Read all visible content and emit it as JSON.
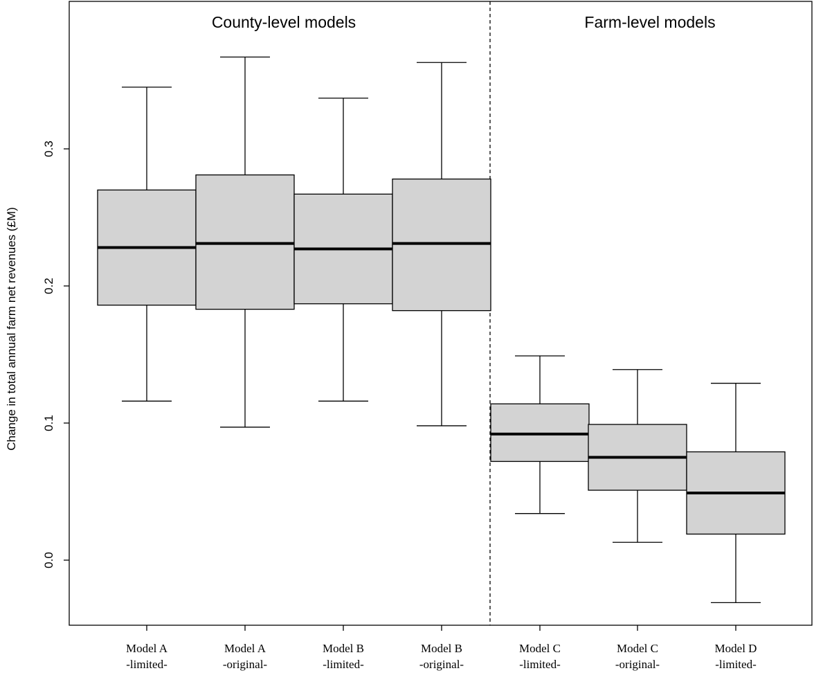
{
  "chart_data": {
    "type": "boxplot",
    "ylabel": "Change in total annual farm net revenues (£M)",
    "ylim": [
      -0.047,
      0.41
    ],
    "yticks": [
      "0.0",
      "0.1",
      "0.2",
      "0.3"
    ],
    "ytick_values": [
      0.0,
      0.1,
      0.2,
      0.3
    ],
    "grid": false,
    "panels": [
      {
        "label": "County-level models",
        "categories": [
          0,
          1,
          2,
          3
        ]
      },
      {
        "label": "Farm-level models",
        "categories": [
          4,
          5,
          6
        ]
      }
    ],
    "categories": [
      {
        "line1": "Model A",
        "line2": "-limited-"
      },
      {
        "line1": "Model A",
        "line2": "-original-"
      },
      {
        "line1": "Model B",
        "line2": "-limited-"
      },
      {
        "line1": "Model B",
        "line2": "-original-"
      },
      {
        "line1": "Model C",
        "line2": "-limited-"
      },
      {
        "line1": "Model C",
        "line2": "-original-"
      },
      {
        "line1": "Model D",
        "line2": "-limited-"
      }
    ],
    "boxes": [
      {
        "min": 0.116,
        "q1": 0.186,
        "median": 0.228,
        "q3": 0.27,
        "max": 0.345
      },
      {
        "min": 0.097,
        "q1": 0.183,
        "median": 0.231,
        "q3": 0.281,
        "max": 0.367
      },
      {
        "min": 0.116,
        "q1": 0.187,
        "median": 0.227,
        "q3": 0.267,
        "max": 0.337
      },
      {
        "min": 0.098,
        "q1": 0.182,
        "median": 0.231,
        "q3": 0.278,
        "max": 0.363
      },
      {
        "min": 0.034,
        "q1": 0.072,
        "median": 0.092,
        "q3": 0.114,
        "max": 0.149
      },
      {
        "min": 0.013,
        "q1": 0.051,
        "median": 0.075,
        "q3": 0.099,
        "max": 0.139
      },
      {
        "min": -0.031,
        "q1": 0.019,
        "median": 0.049,
        "q3": 0.079,
        "max": 0.129
      }
    ],
    "box_color": "#d3d3d3"
  }
}
